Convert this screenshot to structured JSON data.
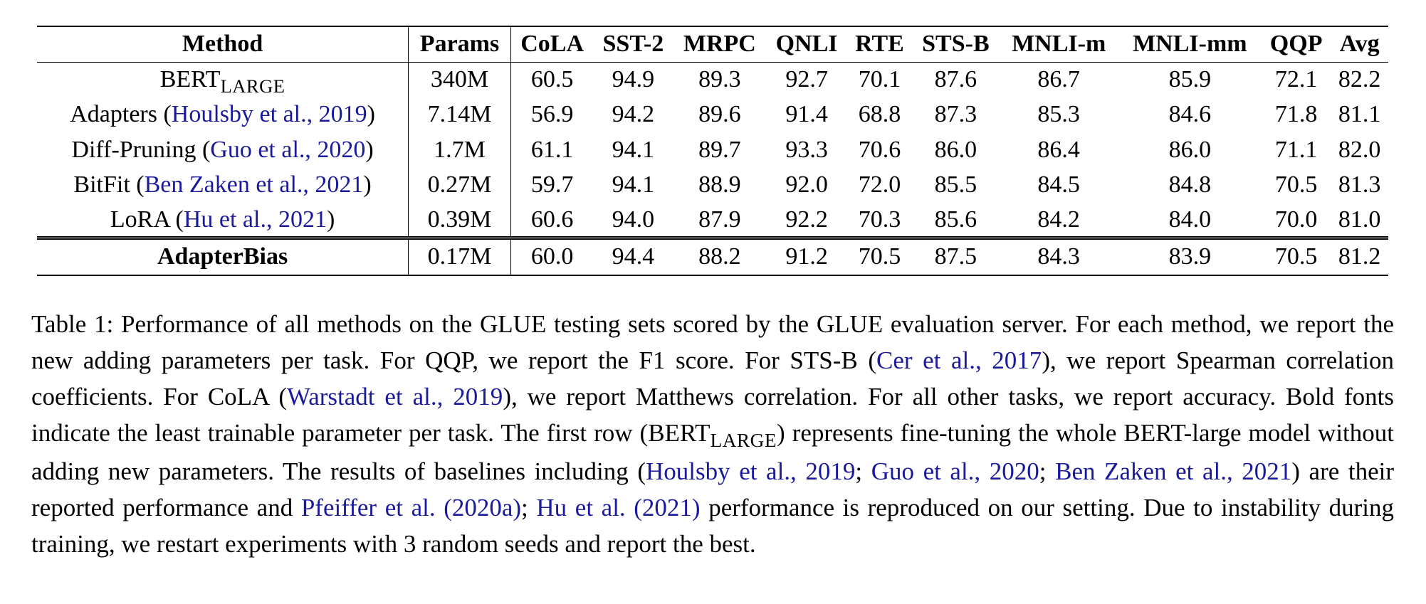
{
  "table": {
    "headers": [
      "Method",
      "Params",
      "CoLA",
      "SST-2",
      "MRPC",
      "QNLI",
      "RTE",
      "STS-B",
      "MNLI-m",
      "MNLI-mm",
      "QQP",
      "Avg"
    ],
    "rows": [
      {
        "method": "BERT",
        "method_sub": "LARGE",
        "cite": "",
        "params": "340M",
        "values": [
          "60.5",
          "94.9",
          "89.3",
          "92.7",
          "70.1",
          "87.6",
          "86.7",
          "85.9",
          "72.1",
          "82.2"
        ]
      },
      {
        "method": "Adapters (",
        "cite": "Houlsby et al., 2019",
        "params": "7.14M",
        "values": [
          "56.9",
          "94.2",
          "89.6",
          "91.4",
          "68.8",
          "87.3",
          "85.3",
          "84.6",
          "71.8",
          "81.1"
        ]
      },
      {
        "method": "Diff-Pruning (",
        "cite": "Guo et al., 2020",
        "params": "1.7M",
        "values": [
          "61.1",
          "94.1",
          "89.7",
          "93.3",
          "70.6",
          "86.0",
          "86.4",
          "86.0",
          "71.1",
          "82.0"
        ]
      },
      {
        "method": "BitFit (",
        "cite": "Ben Zaken et al., 2021",
        "params": "0.27M",
        "values": [
          "59.7",
          "94.1",
          "88.9",
          "92.0",
          "72.0",
          "85.5",
          "84.5",
          "84.8",
          "70.5",
          "81.3"
        ]
      },
      {
        "method": "LoRA (",
        "cite": "Hu et al., 2021",
        "params": "0.39M",
        "values": [
          "60.6",
          "94.0",
          "87.9",
          "92.2",
          "70.3",
          "85.6",
          "84.2",
          "84.0",
          "70.0",
          "81.0"
        ]
      }
    ],
    "ours": {
      "method": "AdapterBias",
      "params": "0.17M",
      "values": [
        "60.0",
        "94.4",
        "88.2",
        "91.2",
        "70.5",
        "87.5",
        "84.3",
        "83.9",
        "70.5",
        "81.2"
      ]
    }
  },
  "caption": {
    "label": "Table 1:",
    "p1": " Performance of all methods on the GLUE testing sets scored by the GLUE evaluation server. For each method, we report the new adding parameters per task. For QQP, we report the F1 score. For STS-B (",
    "c1": "Cer et al., 2017",
    "p2": "), we report Spearman correlation coefficients. For CoLA (",
    "c2": "Warstadt et al., 2019",
    "p3": "), we report Matthews correlation. For all other tasks, we report accuracy. Bold fonts indicate the least trainable parameter per task. The first row (BERT",
    "sub": "LARGE",
    "p4": ") represents fine-tuning the whole BERT-large model without adding new parameters. The results of baselines including (",
    "c3": "Houlsby et al., 2019",
    "s1": "; ",
    "c4": "Guo et al., 2020",
    "s2": "; ",
    "c5": "Ben Zaken et al., 2021",
    "p5": ") are their reported performance and ",
    "c6": "Pfeiffer et al. (2020a)",
    "s3": "; ",
    "c7": "Hu et al. (2021)",
    "p6": " performance is reproduced on our setting. Due to instability during training, we restart experiments with 3 random seeds and report the best."
  }
}
